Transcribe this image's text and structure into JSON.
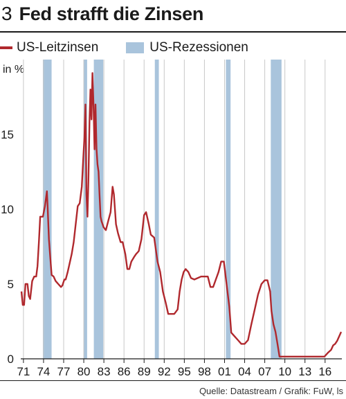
{
  "header": {
    "number": "3",
    "title": "Fed strafft die Zinsen"
  },
  "legend": [
    {
      "label": "US-Leitzinsen",
      "color": "#b0282d",
      "kind": "line"
    },
    {
      "label": "US-Rezessionen",
      "color": "#a9c4dc",
      "kind": "box"
    }
  ],
  "unit": "in %",
  "source": "Quelle: Datastream / Grafik: FuW, ls",
  "chart_data": {
    "type": "line",
    "title": "Fed strafft die Zinsen",
    "xlabel": "",
    "ylabel": "in %",
    "xlim": [
      1970.6,
      2018.5
    ],
    "ylim": [
      0,
      20
    ],
    "grid": "vertical",
    "legend_position": "top",
    "y_ticks": [
      0,
      5,
      10,
      15
    ],
    "x_ticks": [
      {
        "label": "71",
        "year": 1971
      },
      {
        "label": "74",
        "year": 1974
      },
      {
        "label": "77",
        "year": 1977
      },
      {
        "label": "80",
        "year": 1980
      },
      {
        "label": "83",
        "year": 1983
      },
      {
        "label": "86",
        "year": 1986
      },
      {
        "label": "89",
        "year": 1989
      },
      {
        "label": "92",
        "year": 1992
      },
      {
        "label": "95",
        "year": 1995
      },
      {
        "label": "98",
        "year": 1998
      },
      {
        "label": "01",
        "year": 2001
      },
      {
        "label": "04",
        "year": 2004
      },
      {
        "label": "07",
        "year": 2007
      },
      {
        "label": "10",
        "year": 2010
      },
      {
        "label": "13",
        "year": 2013
      },
      {
        "label": "16",
        "year": 2016
      }
    ],
    "recessions": [
      [
        1973.9,
        1975.2
      ],
      [
        1980.0,
        1980.5
      ],
      [
        1981.5,
        1982.9
      ],
      [
        1990.6,
        1991.2
      ],
      [
        2001.2,
        2001.9
      ],
      [
        2007.9,
        2009.5
      ]
    ],
    "series": [
      {
        "name": "US-Leitzinsen",
        "color": "#b0282d",
        "x": [
          1970.7,
          1970.9,
          1971.1,
          1971.3,
          1971.6,
          1971.8,
          1972.0,
          1972.3,
          1972.6,
          1972.9,
          1973.1,
          1973.3,
          1973.5,
          1973.7,
          1973.9,
          1974.2,
          1974.5,
          1974.6,
          1974.8,
          1975.0,
          1975.2,
          1975.5,
          1975.8,
          1976.2,
          1976.6,
          1976.8,
          1977.1,
          1977.3,
          1977.6,
          1977.9,
          1978.2,
          1978.5,
          1978.8,
          1979.1,
          1979.4,
          1979.7,
          1979.9,
          1980.1,
          1980.25,
          1980.4,
          1980.55,
          1980.7,
          1980.85,
          1981.0,
          1981.15,
          1981.3,
          1981.45,
          1981.6,
          1981.75,
          1981.9,
          1982.05,
          1982.2,
          1982.35,
          1982.5,
          1982.65,
          1982.8,
          1982.95,
          1983.3,
          1983.7,
          1984.0,
          1984.3,
          1984.5,
          1984.8,
          1985.1,
          1985.5,
          1985.8,
          1986.2,
          1986.5,
          1986.8,
          1987.1,
          1987.5,
          1987.8,
          1988.2,
          1988.6,
          1989.0,
          1989.3,
          1989.7,
          1990.0,
          1990.5,
          1991.0,
          1991.4,
          1991.8,
          1992.2,
          1992.6,
          1993.0,
          1993.5,
          1994.0,
          1994.3,
          1994.6,
          1994.9,
          1995.2,
          1995.6,
          1996.0,
          1996.5,
          1997.0,
          1997.5,
          1998.0,
          1998.5,
          1998.9,
          1999.3,
          1999.7,
          2000.1,
          2000.5,
          2000.9,
          2001.3,
          2001.7,
          2002.0,
          2002.5,
          2003.0,
          2003.5,
          2004.0,
          2004.5,
          2005.0,
          2005.5,
          2006.0,
          2006.5,
          2007.0,
          2007.4,
          2007.8,
          2008.0,
          2008.3,
          2008.6,
          2008.9,
          2009.2,
          2010.0,
          2012.0,
          2014.0,
          2015.9,
          2016.4,
          2016.9,
          2017.2,
          2017.5,
          2017.8,
          2018.1,
          2018.4
        ],
        "values": [
          4.5,
          3.6,
          3.6,
          5.0,
          5.0,
          4.2,
          4.0,
          5.2,
          5.5,
          5.5,
          6.2,
          7.8,
          9.5,
          9.5,
          9.5,
          10.2,
          11.2,
          10.3,
          8.0,
          6.8,
          5.6,
          5.5,
          5.2,
          5.0,
          4.8,
          4.9,
          5.3,
          5.3,
          5.8,
          6.4,
          7.0,
          7.8,
          9.0,
          10.2,
          10.4,
          11.5,
          13.2,
          14.8,
          17.0,
          11.0,
          9.5,
          12.0,
          15.8,
          18.0,
          16.0,
          19.1,
          17.0,
          14.0,
          17.0,
          14.0,
          13.0,
          12.5,
          11.0,
          9.5,
          9.2,
          9.0,
          8.8,
          8.6,
          9.3,
          9.8,
          11.5,
          11.0,
          9.0,
          8.4,
          7.8,
          7.8,
          7.0,
          6.0,
          6.0,
          6.5,
          6.8,
          7.0,
          7.2,
          8.0,
          9.6,
          9.8,
          9.0,
          8.3,
          8.1,
          6.5,
          5.8,
          4.5,
          3.8,
          3.0,
          3.0,
          3.0,
          3.3,
          4.5,
          5.3,
          5.8,
          6.0,
          5.8,
          5.4,
          5.3,
          5.4,
          5.5,
          5.5,
          5.5,
          4.8,
          4.8,
          5.3,
          5.8,
          6.5,
          6.5,
          5.0,
          3.5,
          1.75,
          1.5,
          1.25,
          1.0,
          1.0,
          1.25,
          2.3,
          3.3,
          4.3,
          5.0,
          5.25,
          5.25,
          4.5,
          3.2,
          2.3,
          1.8,
          1.0,
          0.15,
          0.15,
          0.15,
          0.15,
          0.15,
          0.4,
          0.6,
          0.9,
          1.0,
          1.2,
          1.5,
          1.8
        ]
      }
    ]
  }
}
